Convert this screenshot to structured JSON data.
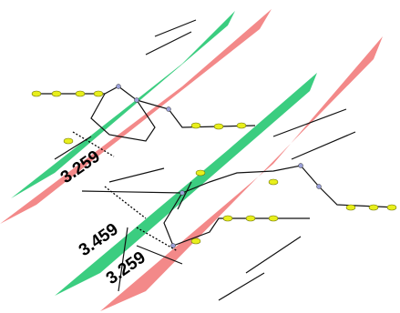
{
  "distances": [
    "3.259",
    "3.459",
    "3.259"
  ]
}
